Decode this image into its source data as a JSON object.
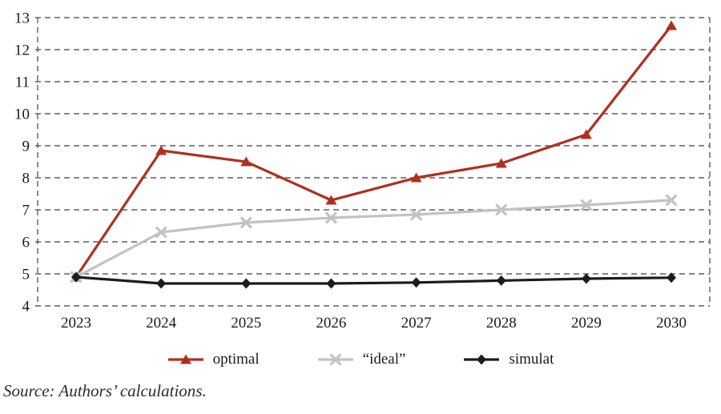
{
  "source_note": "Source: Authors’ calculations.",
  "chart_data": {
    "type": "line",
    "title": "",
    "xlabel": "",
    "ylabel": "",
    "categories": [
      "2023",
      "2024",
      "2025",
      "2026",
      "2027",
      "2028",
      "2029",
      "2030"
    ],
    "series": [
      {
        "name": "optimal",
        "marker": "triangle",
        "color": "#b02f20",
        "values": [
          4.9,
          8.85,
          8.5,
          7.3,
          8.0,
          8.45,
          9.35,
          12.75
        ]
      },
      {
        "name": "“ideal”",
        "marker": "x",
        "color": "#c2c2c2",
        "values": [
          4.9,
          6.3,
          6.6,
          6.75,
          6.85,
          7.0,
          7.15,
          7.3
        ]
      },
      {
        "name": "simulat",
        "marker": "diamond",
        "color": "#1c1c1c",
        "values": [
          4.9,
          4.7,
          4.7,
          4.7,
          4.73,
          4.79,
          4.85,
          4.88
        ]
      }
    ],
    "ylim": [
      4,
      13
    ],
    "ytick_labels": [
      "4",
      "5",
      "6",
      "7",
      "8",
      "9",
      "10",
      "11",
      "12",
      "13"
    ],
    "grid": "dashed-horizontal-with-dashed-border",
    "gridline_color": "#5e5e5e",
    "axis_text_color": "#1a1a1a",
    "legend_position": "bottom"
  }
}
